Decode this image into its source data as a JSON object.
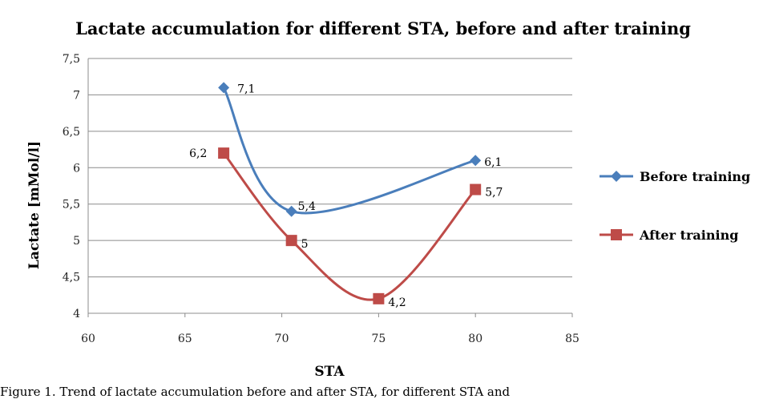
{
  "caption": "Figure 1. Trend of lactate accumulation before and after STA, for different STA and",
  "chart_data": {
    "type": "line",
    "title": "Lactate accumulation for different STA, before and after training",
    "xlabel": "STA",
    "ylabel": "Lactate [mMol/l]",
    "xlim": [
      60,
      85
    ],
    "ylim": [
      4,
      7.5
    ],
    "x_ticks": [
      "60",
      "65",
      "70",
      "75",
      "80",
      "85"
    ],
    "y_ticks": [
      "4",
      "4,5",
      "5",
      "5,5",
      "6",
      "6,5",
      "7",
      "7,5"
    ],
    "grid": "horizontal",
    "legend_position": "right",
    "series": [
      {
        "name": "Before training",
        "color": "#4A7EBB",
        "marker": "diamond",
        "points": [
          {
            "x": 67,
            "y": 7.1,
            "label": "7,1"
          },
          {
            "x": 70.5,
            "y": 5.4,
            "label": "5,4"
          },
          {
            "x": 80,
            "y": 6.1,
            "label": "6,1"
          }
        ]
      },
      {
        "name": "After training",
        "color": "#BE4B48",
        "marker": "square",
        "points": [
          {
            "x": 67,
            "y": 6.2,
            "label": "6,2"
          },
          {
            "x": 70.5,
            "y": 5.0,
            "label": "5"
          },
          {
            "x": 75,
            "y": 4.2,
            "label": "4,2"
          },
          {
            "x": 80,
            "y": 5.7,
            "label": "5,7"
          }
        ]
      }
    ]
  }
}
